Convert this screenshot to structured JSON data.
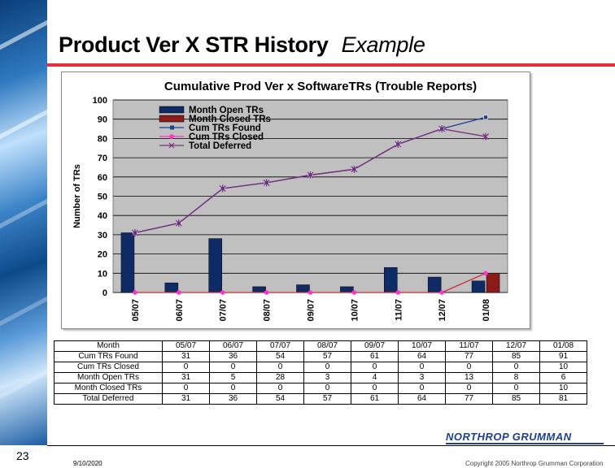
{
  "slide": {
    "title": "Product Ver X STR History",
    "title_emphasis": "Example",
    "page_number": "23",
    "date": "9/10/2020",
    "copyright": "Copyright 2005 Northrop Grumman Corporation",
    "logo_text": "NORTHROP GRUMMAN"
  },
  "colors": {
    "accent_rule": "#e8303a",
    "open_bar": "#0f2b66",
    "closed_bar": "#8b1a1a",
    "cum_found": "#1c3f94",
    "cum_closed": "#ff33cc",
    "total_deferred": "#7b2c7e",
    "plot_bg": "#c0c0c0"
  },
  "chart_data": {
    "type": "bar",
    "title": "Cumulative Prod Ver x SoftwareTRs (Trouble Reports)",
    "xlabel": "",
    "ylabel": "Number of TRs",
    "ylim": [
      0,
      100
    ],
    "yticks": [
      0,
      10,
      20,
      30,
      40,
      50,
      60,
      70,
      80,
      90,
      100
    ],
    "grid": "horizontal",
    "legend_position": "top-left",
    "categories": [
      "05/07",
      "06/07",
      "07/07",
      "08/07",
      "09/07",
      "10/07",
      "11/07",
      "12/07",
      "01/08"
    ],
    "series": [
      {
        "name": "Month Open TRs",
        "type": "bar",
        "values": [
          31,
          5,
          28,
          3,
          4,
          3,
          13,
          8,
          6
        ]
      },
      {
        "name": "Month Closed TRs",
        "type": "bar",
        "values": [
          0,
          0,
          0,
          0,
          0,
          0,
          0,
          0,
          10
        ]
      },
      {
        "name": "Cum TRs Found",
        "type": "line",
        "values": [
          31,
          36,
          54,
          57,
          61,
          64,
          77,
          85,
          91
        ]
      },
      {
        "name": "Cum TRs Closed",
        "type": "line",
        "values": [
          0,
          0,
          0,
          0,
          0,
          0,
          0,
          0,
          10
        ]
      },
      {
        "name": "Total Deferred",
        "type": "line",
        "values": [
          31,
          36,
          54,
          57,
          61,
          64,
          77,
          85,
          81
        ]
      }
    ]
  },
  "table": {
    "header_label": "Month",
    "months": [
      "05/07",
      "06/07",
      "07/07",
      "08/07",
      "09/07",
      "10/07",
      "11/07",
      "12/07",
      "01/08"
    ],
    "rows": [
      {
        "label": "Cum TRs Found",
        "values": [
          "31",
          "36",
          "54",
          "57",
          "61",
          "64",
          "77",
          "85",
          "91"
        ]
      },
      {
        "label": "Cum TRs Closed",
        "values": [
          "0",
          "0",
          "0",
          "0",
          "0",
          "0",
          "0",
          "0",
          "10"
        ]
      },
      {
        "label": "Month Open TRs",
        "values": [
          "31",
          "5",
          "28",
          "3",
          "4",
          "3",
          "13",
          "8",
          "6"
        ]
      },
      {
        "label": "Month Closed TRs",
        "values": [
          "0",
          "0",
          "0",
          "0",
          "0",
          "0",
          "0",
          "0",
          "10"
        ]
      },
      {
        "label": "Total Deferred",
        "values": [
          "31",
          "36",
          "54",
          "57",
          "61",
          "64",
          "77",
          "85",
          "81"
        ]
      }
    ]
  }
}
